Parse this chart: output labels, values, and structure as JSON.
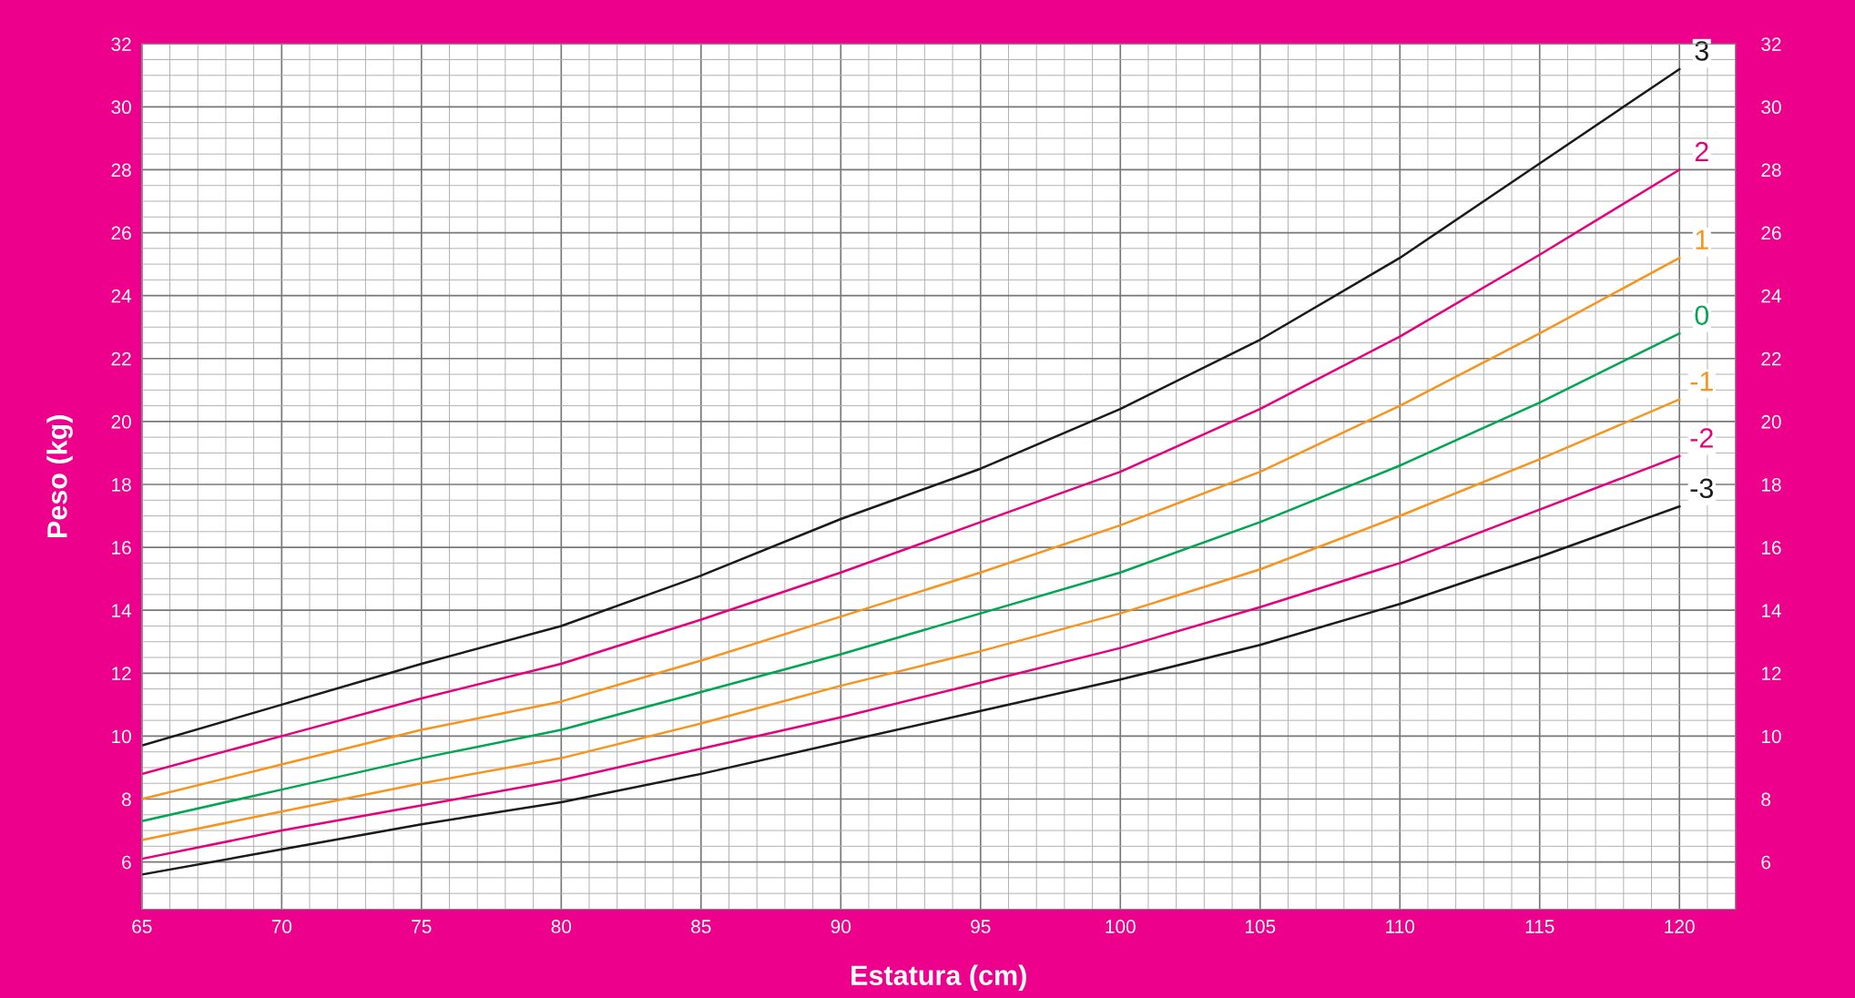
{
  "chart_data": {
    "type": "line",
    "xlabel": "Estatura (cm)",
    "ylabel": "Peso (kg)",
    "x": [
      65,
      70,
      75,
      80,
      85,
      90,
      95,
      100,
      105,
      110,
      115,
      120
    ],
    "series": [
      {
        "name": "3",
        "color": "#1a1a1a",
        "values": [
          9.7,
          11.0,
          12.3,
          13.5,
          15.1,
          16.9,
          18.5,
          20.4,
          22.6,
          25.2,
          28.2,
          31.2
        ]
      },
      {
        "name": "2",
        "color": "#e6007e",
        "values": [
          8.8,
          10.0,
          11.2,
          12.3,
          13.7,
          15.2,
          16.8,
          18.4,
          20.4,
          22.7,
          25.3,
          28.0
        ]
      },
      {
        "name": "1",
        "color": "#f7941d",
        "values": [
          8.0,
          9.1,
          10.2,
          11.1,
          12.4,
          13.8,
          15.2,
          16.7,
          18.4,
          20.5,
          22.8,
          25.2
        ]
      },
      {
        "name": "0",
        "color": "#00a651",
        "values": [
          7.3,
          8.3,
          9.3,
          10.2,
          11.4,
          12.6,
          13.9,
          15.2,
          16.8,
          18.6,
          20.6,
          22.8
        ]
      },
      {
        "name": "-1",
        "color": "#f7941d",
        "values": [
          6.7,
          7.6,
          8.5,
          9.3,
          10.4,
          11.6,
          12.7,
          13.9,
          15.3,
          17.0,
          18.8,
          20.7
        ]
      },
      {
        "name": "-2",
        "color": "#e6007e",
        "values": [
          6.1,
          7.0,
          7.8,
          8.6,
          9.6,
          10.6,
          11.7,
          12.8,
          14.1,
          15.5,
          17.2,
          18.9
        ]
      },
      {
        "name": "-3",
        "color": "#1a1a1a",
        "values": [
          5.6,
          6.4,
          7.2,
          7.9,
          8.8,
          9.8,
          10.8,
          11.8,
          12.9,
          14.2,
          15.7,
          17.3
        ]
      }
    ],
    "xlim": [
      65,
      122
    ],
    "xticks": [
      65,
      70,
      75,
      80,
      85,
      90,
      95,
      100,
      105,
      110,
      115,
      120
    ],
    "ylim": [
      4.5,
      32
    ],
    "yticks": [
      6,
      8,
      10,
      12,
      14,
      16,
      18,
      20,
      22,
      24,
      26,
      28,
      30,
      32
    ],
    "y2lim": [
      4.5,
      32
    ],
    "y2ticks": [
      6,
      8,
      10,
      12,
      14,
      16,
      18,
      20,
      22,
      24,
      26,
      28,
      30,
      32
    ],
    "grid": true,
    "legend": false,
    "marker": "none",
    "line_style": "solid"
  }
}
